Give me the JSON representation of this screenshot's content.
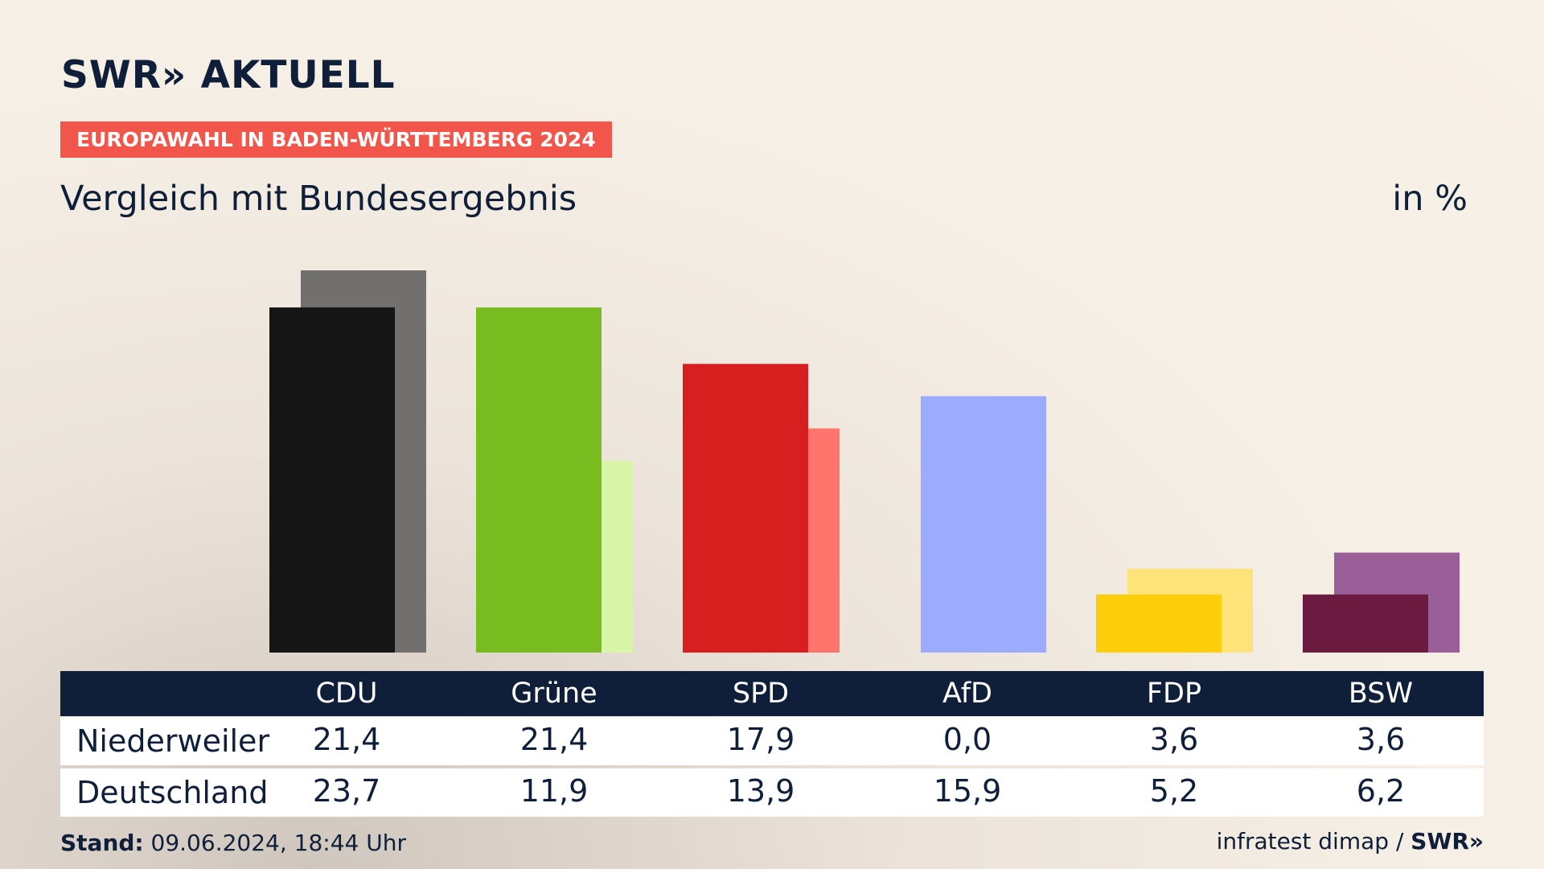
{
  "brand": {
    "text": "SWR» AKTUELL"
  },
  "badge": {
    "text": "EUROPAWAHL IN BADEN-WÜRTTEMBERG 2024"
  },
  "subtitle": "Vergleich mit Bundesergebnis",
  "unit": "in %",
  "table": {
    "headers": [
      "CDU",
      "Grüne",
      "SPD",
      "AfD",
      "FDP",
      "BSW"
    ],
    "rows": [
      {
        "label": "Niederweiler",
        "values": [
          "21,4",
          "21,4",
          "17,9",
          "0,0",
          "3,6",
          "3,6"
        ]
      },
      {
        "label": "Deutschland",
        "values": [
          "23,7",
          "11,9",
          "13,9",
          "15,9",
          "5,2",
          "6,2"
        ]
      }
    ]
  },
  "footer": {
    "stand_label": "Stand:",
    "stand_value": "09.06.2024, 18:44 Uhr",
    "source": "infratest dimap /",
    "source_brand": "SWR»"
  },
  "chart_data": {
    "type": "bar",
    "categories": [
      "CDU",
      "Grüne",
      "SPD",
      "AfD",
      "FDP",
      "BSW"
    ],
    "series": [
      {
        "name": "Niederweiler",
        "values": [
          21.4,
          21.4,
          17.9,
          0.0,
          3.6,
          3.6
        ],
        "colors": [
          "#151515",
          "#78bc1f",
          "#d71f1f",
          "#9dabff",
          "#fdcf0b",
          "#6b1a40"
        ]
      },
      {
        "name": "Deutschland",
        "values": [
          23.7,
          11.9,
          13.9,
          15.9,
          5.2,
          6.2
        ],
        "colors": [
          "#72706e",
          "#d9f5a8",
          "#ff756d",
          "#9dabff",
          "#fee27a",
          "#9a5e99"
        ]
      }
    ],
    "unit": "in %",
    "ylim": [
      0,
      23.7
    ],
    "grid": false,
    "legend": "table below chart"
  }
}
